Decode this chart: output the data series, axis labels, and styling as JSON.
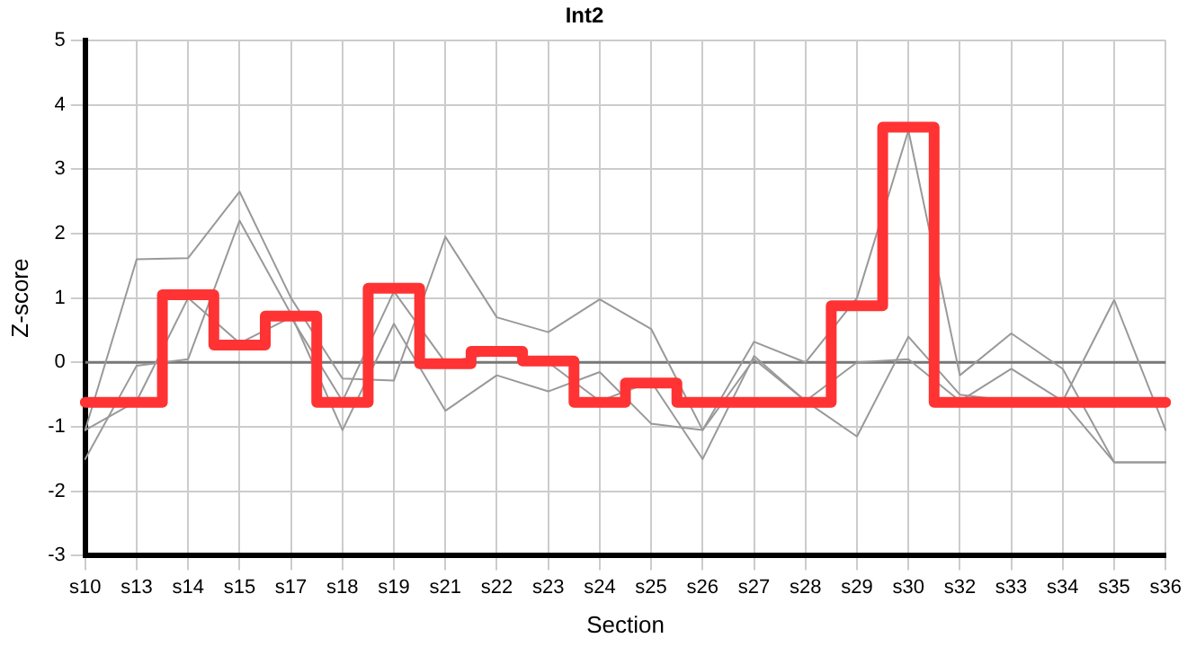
{
  "chart_data": {
    "type": "line",
    "title": "Int2",
    "xlabel": "Section",
    "ylabel": "Z-score",
    "categories": [
      "s10",
      "s13",
      "s14",
      "s15",
      "s17",
      "s18",
      "s19",
      "s21",
      "s22",
      "s23",
      "s24",
      "s25",
      "s26",
      "s27",
      "s28",
      "s29",
      "s30",
      "s32",
      "s33",
      "s34",
      "s35",
      "s36"
    ],
    "series": [
      {
        "color": "#999999",
        "values": [
          -1.05,
          1.6,
          1.62,
          2.65,
          1.0,
          -0.25,
          -0.28,
          1.95,
          0.7,
          0.47,
          0.98,
          0.52,
          -1.05,
          0.32,
          0.0,
          1.0,
          3.6,
          -0.2,
          0.45,
          -0.1,
          -1.55,
          -1.55
        ]
      },
      {
        "color": "#999999",
        "values": [
          -1.5,
          -0.05,
          0.05,
          2.2,
          0.75,
          -1.05,
          0.6,
          -0.75,
          -0.2,
          -0.45,
          -0.15,
          -0.95,
          -1.05,
          0.05,
          -0.6,
          0.0,
          0.05,
          -0.6,
          -0.1,
          -0.6,
          -1.55,
          -1.55
        ]
      },
      {
        "color": "#999999",
        "values": [
          -1.05,
          -0.6,
          1.0,
          0.3,
          0.7,
          -0.6,
          1.1,
          0.0,
          0.15,
          0.0,
          -0.6,
          -0.3,
          -1.5,
          0.1,
          -0.6,
          -1.15,
          0.4,
          -0.5,
          -0.6,
          -0.6,
          0.97,
          -1.05
        ]
      },
      {
        "type": "step",
        "color": "#ff3333",
        "values": [
          -0.62,
          -0.62,
          1.05,
          0.27,
          0.72,
          -0.62,
          1.15,
          -0.02,
          0.17,
          0.02,
          -0.62,
          -0.32,
          -0.62,
          -0.62,
          -0.62,
          0.88,
          3.65,
          -0.62,
          -0.62,
          -0.62,
          -0.62,
          -0.62
        ]
      }
    ],
    "ylim": [
      -3,
      5
    ],
    "yticks": [
      -3,
      -2,
      -1,
      0,
      1,
      2,
      3,
      4,
      5
    ],
    "grid": true,
    "legend": false,
    "marker": "none",
    "ref_lines": [
      {
        "axis": "y",
        "value": 0,
        "color": "#777777"
      }
    ]
  }
}
